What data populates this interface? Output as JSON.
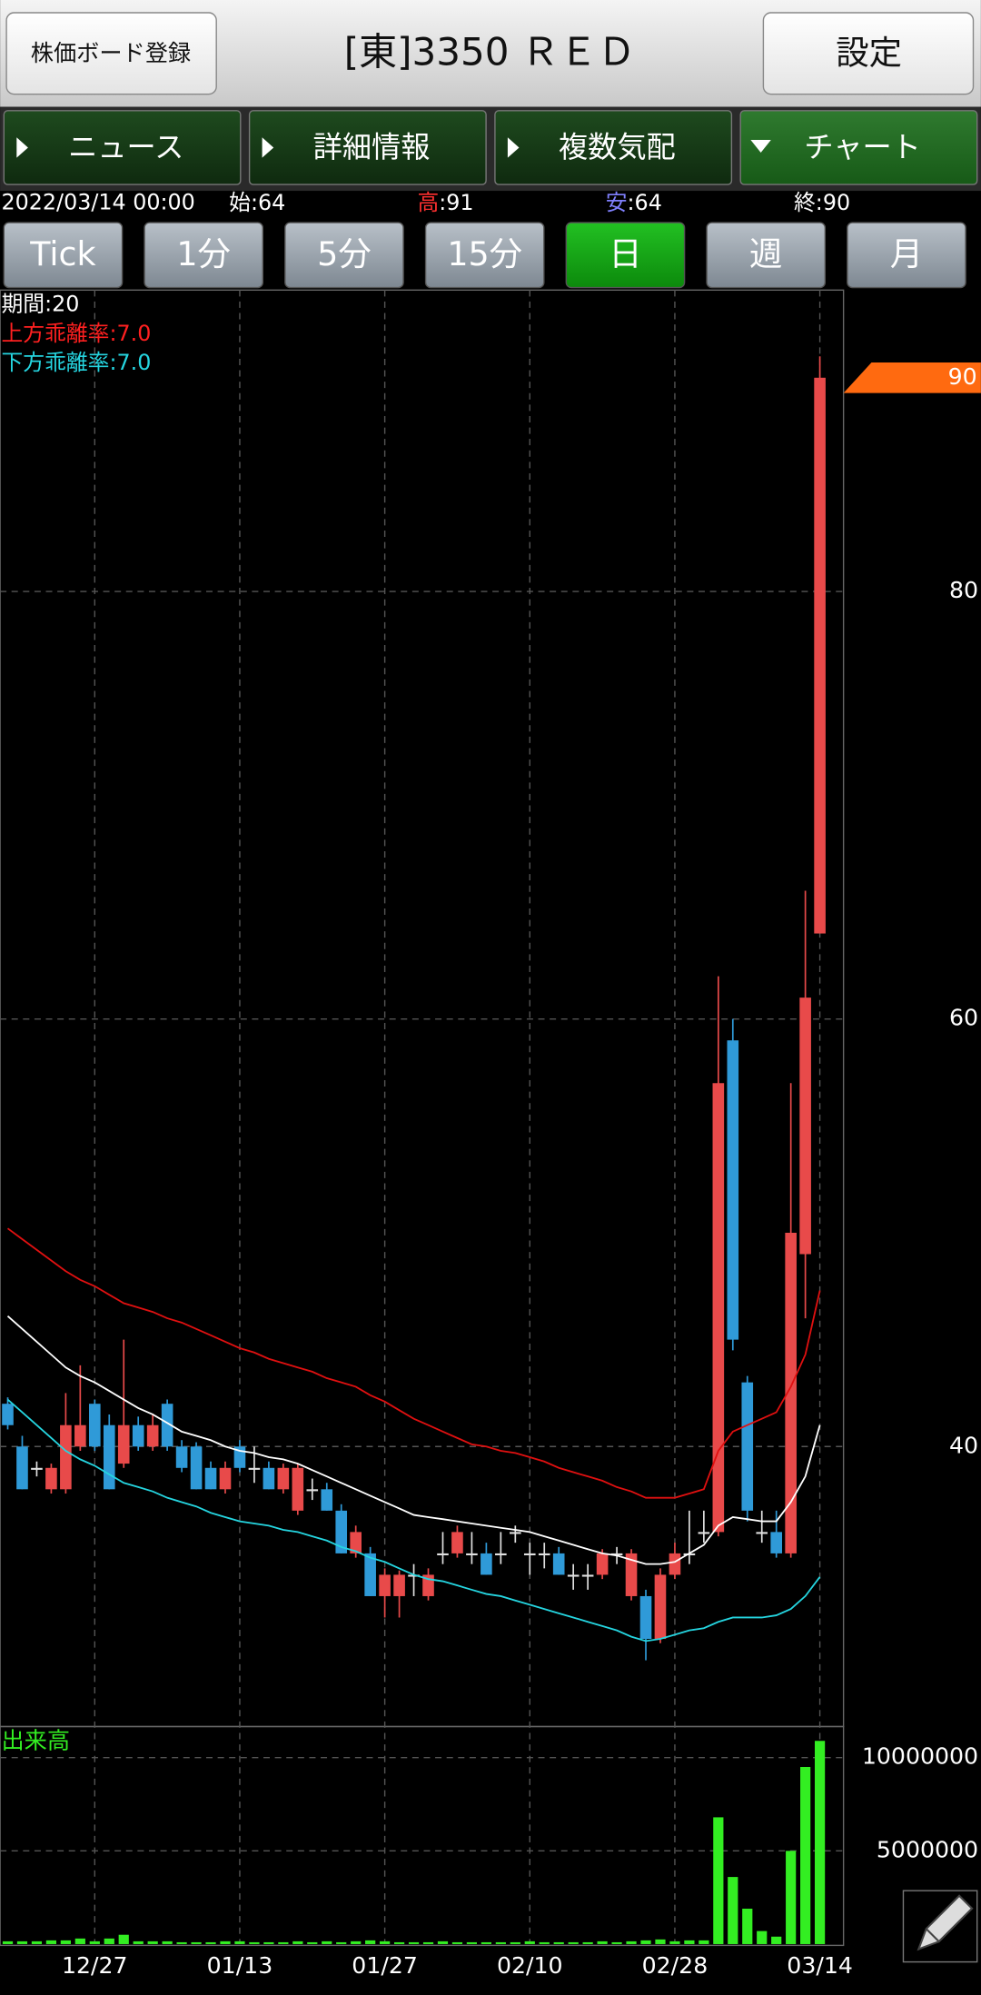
{
  "header": {
    "register_button": "株価ボード登録",
    "title": "[東]3350 ＲＥＤ",
    "settings_button": "設定"
  },
  "tabs": {
    "items": [
      "ニュース",
      "詳細情報",
      "複数気配",
      "チャート"
    ],
    "selected": 3
  },
  "quote": {
    "datetime": "2022/03/14 00:00",
    "items": [
      {
        "label": "始",
        "text": ":64",
        "color": "#ffffff"
      },
      {
        "label": "高",
        "text": ":91",
        "color": "#ff3030"
      },
      {
        "label": "安",
        "text": ":64",
        "color": "#8080ff"
      },
      {
        "label": "終",
        "text": ":90",
        "color": "#ffffff"
      }
    ]
  },
  "timeframes": {
    "items": [
      "Tick",
      "1分",
      "5分",
      "15分",
      "日",
      "週",
      "月"
    ],
    "selected": 4
  },
  "indicators": [
    {
      "text": "期間:20",
      "color": "#ffffff"
    },
    {
      "text": "上方乖離率:7.0",
      "color": "#ff2020"
    },
    {
      "text": "下方乖離率:7.0",
      "color": "#25d5e0"
    }
  ],
  "chart_data": [
    {
      "type": "candlestick",
      "categories": [
        null,
        null,
        null,
        null,
        null,
        null,
        "12/27",
        null,
        null,
        null,
        null,
        null,
        null,
        null,
        null,
        null,
        "01/13",
        null,
        null,
        null,
        null,
        null,
        null,
        null,
        null,
        null,
        "01/27",
        null,
        null,
        null,
        null,
        null,
        null,
        null,
        null,
        null,
        "02/10",
        null,
        null,
        null,
        null,
        null,
        null,
        null,
        null,
        null,
        "02/28",
        null,
        null,
        null,
        null,
        null,
        null,
        null,
        null,
        null,
        "03/14"
      ],
      "open": [
        42,
        40,
        39,
        38,
        38,
        40,
        42,
        41,
        39.2,
        41,
        40,
        42,
        40,
        40,
        39,
        38,
        40,
        39,
        39,
        38,
        37,
        38,
        38,
        37,
        35,
        35,
        33,
        33,
        34,
        33,
        35,
        35,
        35,
        35,
        35,
        36,
        35,
        35,
        35,
        34,
        34,
        34,
        35,
        33,
        33,
        31,
        34,
        35,
        36,
        36,
        59,
        43,
        36,
        36,
        35,
        49,
        64
      ],
      "high": [
        42.3,
        40.5,
        39.3,
        39.2,
        42.5,
        43.8,
        42.2,
        41.5,
        45,
        41.4,
        41.5,
        42.2,
        40.3,
        40.2,
        39.3,
        39.3,
        40.3,
        40,
        39.3,
        39.2,
        39.2,
        38.5,
        38.3,
        37.3,
        36.3,
        35.3,
        34.3,
        34.2,
        34.5,
        34.3,
        36,
        36.3,
        36,
        35.5,
        36,
        36.3,
        35.5,
        35.5,
        35.3,
        34.5,
        34.5,
        35.2,
        35.3,
        35.2,
        33.3,
        34.3,
        35.5,
        37,
        37,
        62,
        60,
        43.3,
        37,
        37,
        57,
        66,
        91
      ],
      "low": [
        40.8,
        38,
        38.6,
        37.8,
        37.8,
        39.8,
        39.8,
        38,
        39,
        39.8,
        39.8,
        39.8,
        38.8,
        38,
        38,
        37.8,
        38.8,
        38.3,
        38,
        37.8,
        36.8,
        37.5,
        37,
        35,
        34.8,
        33,
        32,
        32,
        33,
        32.8,
        34.5,
        34.8,
        34.5,
        34,
        34.5,
        35.5,
        34,
        34.3,
        34,
        33.3,
        33.3,
        33.8,
        34.5,
        32.8,
        30,
        30.8,
        33.8,
        34.5,
        35.5,
        35.8,
        44.5,
        36.5,
        35.5,
        34.8,
        34.8,
        46,
        64
      ],
      "close": [
        41,
        38,
        39,
        39,
        41,
        41,
        40,
        38,
        41,
        40,
        41,
        40,
        39,
        38,
        38,
        39,
        39,
        39,
        38,
        39,
        39,
        38,
        37,
        35,
        36,
        33,
        34,
        34,
        34,
        34,
        35,
        36,
        35,
        34,
        35,
        36,
        35,
        35,
        34,
        34,
        34,
        35,
        35,
        35,
        31,
        34,
        35,
        35,
        36,
        57,
        45,
        37,
        36,
        35,
        50,
        61,
        90
      ],
      "up_color": "#e84a4a",
      "down_color": "#2f9ad8",
      "doji_color": "#e0e0e0",
      "overlays": [
        {
          "color": "#ffffff",
          "values": [
            46.1,
            45.5,
            44.9,
            44.3,
            43.7,
            43.3,
            43.0,
            42.6,
            42.2,
            41.8,
            41.5,
            41.1,
            40.7,
            40.5,
            40.3,
            40.0,
            39.8,
            39.7,
            39.5,
            39.4,
            39.2,
            38.9,
            38.6,
            38.3,
            38.0,
            37.7,
            37.4,
            37.1,
            36.8,
            36.7,
            36.6,
            36.5,
            36.4,
            36.3,
            36.2,
            36.1,
            36.0,
            35.8,
            35.6,
            35.4,
            35.2,
            35.0,
            34.9,
            34.7,
            34.5,
            34.5,
            34.6,
            35.0,
            35.4,
            36.3,
            36.7,
            36.6,
            36.5,
            36.5,
            37.4,
            38.6,
            41.0
          ]
        },
        {
          "color": "#e01010",
          "values": [
            50.2,
            49.7,
            49.2,
            48.7,
            48.2,
            47.8,
            47.5,
            47.1,
            46.7,
            46.5,
            46.3,
            46.0,
            45.8,
            45.5,
            45.2,
            44.9,
            44.6,
            44.4,
            44.1,
            43.9,
            43.7,
            43.5,
            43.2,
            43.0,
            42.8,
            42.4,
            42.1,
            41.7,
            41.3,
            41.0,
            40.7,
            40.4,
            40.1,
            40.0,
            39.8,
            39.7,
            39.5,
            39.3,
            39.0,
            38.8,
            38.6,
            38.4,
            38.1,
            37.9,
            37.6,
            37.6,
            37.6,
            37.8,
            38.0,
            39.8,
            40.7,
            41.0,
            41.3,
            41.6,
            42.8,
            44.3,
            47.3
          ]
        },
        {
          "color": "#25d5e0",
          "values": [
            42.2,
            41.6,
            41.0,
            40.4,
            39.8,
            39.4,
            39.1,
            38.7,
            38.3,
            38.1,
            37.9,
            37.6,
            37.4,
            37.2,
            36.9,
            36.7,
            36.5,
            36.4,
            36.3,
            36.1,
            36.0,
            35.8,
            35.6,
            35.3,
            35.1,
            34.8,
            34.6,
            34.3,
            34.0,
            33.8,
            33.7,
            33.5,
            33.3,
            33.1,
            33.0,
            32.8,
            32.6,
            32.4,
            32.2,
            32.0,
            31.8,
            31.6,
            31.4,
            31.1,
            30.9,
            31.0,
            31.2,
            31.4,
            31.5,
            31.8,
            32.0,
            32.0,
            32.0,
            32.1,
            32.4,
            33.0,
            33.9
          ]
        }
      ],
      "last_price_color": "#ff6a10",
      "ylim": [
        26.9,
        94.1
      ],
      "yticks": [
        40,
        60,
        80
      ],
      "grid": true
    },
    {
      "type": "bar",
      "title": "出来高",
      "title_color": "#33ee22",
      "color": "#33ee22",
      "values": [
        150000,
        150000,
        150000,
        200000,
        200000,
        300000,
        150000,
        300000,
        500000,
        150000,
        150000,
        150000,
        100000,
        100000,
        100000,
        150000,
        150000,
        100000,
        100000,
        100000,
        150000,
        100000,
        150000,
        100000,
        150000,
        200000,
        150000,
        100000,
        100000,
        100000,
        150000,
        100000,
        100000,
        100000,
        100000,
        100000,
        150000,
        100000,
        100000,
        100000,
        100000,
        150000,
        100000,
        150000,
        200000,
        250000,
        150000,
        200000,
        200000,
        6800000,
        3600000,
        1900000,
        700000,
        400000,
        5000000,
        9500000,
        10900000
      ],
      "ylim": [
        0,
        11600000
      ],
      "yticks": [
        5000000,
        10000000
      ],
      "grid": true
    }
  ]
}
